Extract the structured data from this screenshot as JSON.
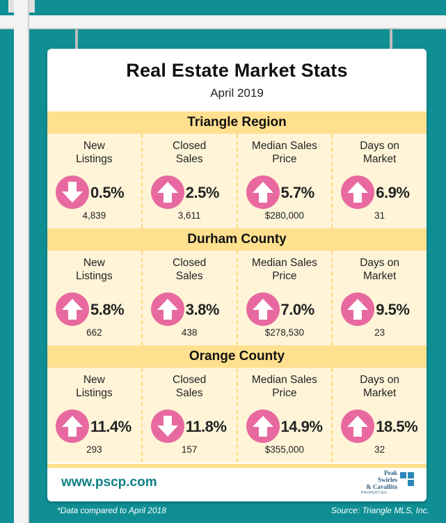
{
  "title": "Real Estate Market Stats",
  "subtitle": "April 2019",
  "colors": {
    "background": "#0f8f94",
    "section_header": "#ffe08f",
    "section_body": "#fff4d8",
    "arrow": "#e8699f",
    "url": "#0f7f84"
  },
  "sections": [
    {
      "name": "Triangle Region",
      "metrics": [
        {
          "label": "New\nListings",
          "direction": "down",
          "change": "0.5%",
          "value": "4,839",
          "icon": "down-arrow-icon"
        },
        {
          "label": "Closed\nSales",
          "direction": "up",
          "change": "2.5%",
          "value": "3,611",
          "icon": "up-arrow-icon"
        },
        {
          "label": "Median Sales\nPrice",
          "direction": "up",
          "change": "5.7%",
          "value": "$280,000",
          "icon": "up-arrow-icon"
        },
        {
          "label": "Days on\nMarket",
          "direction": "up",
          "change": "6.9%",
          "value": "31",
          "icon": "up-arrow-icon"
        }
      ]
    },
    {
      "name": "Durham County",
      "metrics": [
        {
          "label": "New\nListings",
          "direction": "up",
          "change": "5.8%",
          "value": "662",
          "icon": "up-arrow-icon"
        },
        {
          "label": "Closed\nSales",
          "direction": "up",
          "change": "3.8%",
          "value": "438",
          "icon": "up-arrow-icon"
        },
        {
          "label": "Median Sales\nPrice",
          "direction": "up",
          "change": "7.0%",
          "value": "$278,530",
          "icon": "up-arrow-icon"
        },
        {
          "label": "Days on\nMarket",
          "direction": "up",
          "change": "9.5%",
          "value": "23",
          "icon": "up-arrow-icon"
        }
      ]
    },
    {
      "name": "Orange County",
      "metrics": [
        {
          "label": "New\nListings",
          "direction": "up",
          "change": "11.4%",
          "value": "293",
          "icon": "up-arrow-icon"
        },
        {
          "label": "Closed\nSales",
          "direction": "down",
          "change": "11.8%",
          "value": "157",
          "icon": "down-arrow-icon"
        },
        {
          "label": "Median Sales\nPrice",
          "direction": "up",
          "change": "14.9%",
          "value": "$355,000",
          "icon": "up-arrow-icon"
        },
        {
          "label": "Days on\nMarket",
          "direction": "up",
          "change": "18.5%",
          "value": "32",
          "icon": "up-arrow-icon"
        }
      ]
    }
  ],
  "footer": {
    "url": "www.pscp.com",
    "note": "*Data compared to April 2018",
    "source": "Source: Triangle MLS, Inc.",
    "logo_lines": [
      "Peak",
      "Swirles",
      "& Cavallito"
    ],
    "logo_sub": "PROPERTIES"
  }
}
